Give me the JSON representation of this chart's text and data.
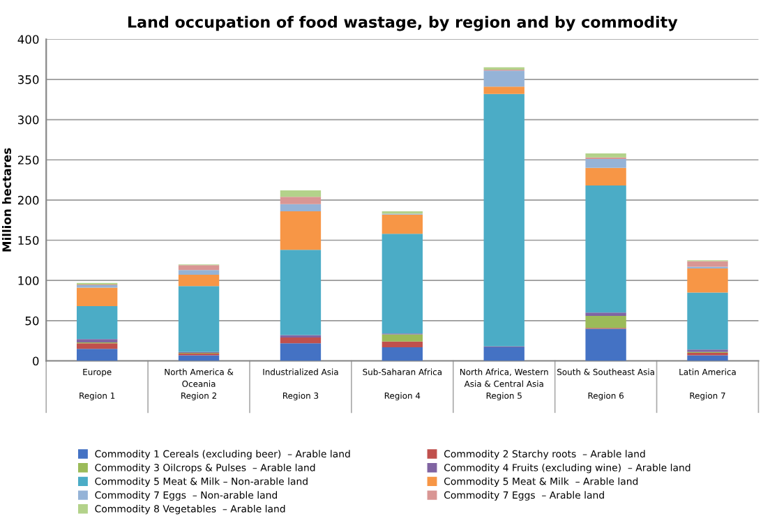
{
  "chart_data": {
    "type": "bar",
    "stacked": true,
    "title": "Land occupation of food wastage, by region and by commodity",
    "ylabel": "Million hectares",
    "categories": [
      "Europe\n\nRegion 1",
      "North America &\nOceania\nRegion 2",
      "Industrialized Asia\n\nRegion 3",
      "Sub-Saharan Africa\n\nRegion 4",
      "North Africa, Western\nAsia & Central Asia\nRegion 5",
      "South & Southeast Asia\n\nRegion 6",
      "Latin America\n\nRegion 7"
    ],
    "series": [
      {
        "name": "Commodity 1 Cereals (excluding beer)  – Arable land",
        "color": "#4472c4",
        "values": [
          15,
          7,
          22,
          17,
          17,
          40,
          7
        ]
      },
      {
        "name": "Commodity 2 Starchy roots  – Arable land",
        "color": "#c0504d",
        "values": [
          7,
          2,
          7,
          7,
          0,
          1,
          3
        ]
      },
      {
        "name": "Commodity 3 Oilcrops & Pulses  – Arable land",
        "color": "#9bbb59",
        "values": [
          1,
          1,
          0,
          9,
          0,
          15,
          1
        ]
      },
      {
        "name": "Commodity 4 Fruits (excluding wine)  – Arable land",
        "color": "#8064a2",
        "values": [
          4,
          1,
          3,
          1,
          1,
          4,
          3
        ]
      },
      {
        "name": "Commodity 5 Meat & Milk – Non-arable land",
        "color": "#4bacc6",
        "values": [
          41,
          82,
          106,
          124,
          314,
          158,
          71
        ]
      },
      {
        "name": "Commodity 5 Meat & Milk  – Arable land",
        "color": "#f79646",
        "values": [
          23,
          14,
          48,
          24,
          9,
          22,
          30
        ]
      },
      {
        "name": "Commodity 7 Eggs  – Non-arable land",
        "color": "#95b3d7",
        "values": [
          3,
          6,
          9,
          1,
          20,
          11,
          2
        ]
      },
      {
        "name": "Commodity 7 Eggs  – Arable land",
        "color": "#d99694",
        "values": [
          1,
          6,
          9,
          0,
          1,
          2,
          7
        ]
      },
      {
        "name": "Commodity 8 Vegetables  – Arable land",
        "color": "#b3d28a",
        "values": [
          2,
          1,
          8,
          3,
          3,
          5,
          1
        ]
      }
    ],
    "ylim": [
      0,
      400
    ],
    "yticks": [
      0,
      50,
      100,
      150,
      200,
      250,
      300,
      350,
      400
    ],
    "grid": "y",
    "legend": "bottom"
  }
}
